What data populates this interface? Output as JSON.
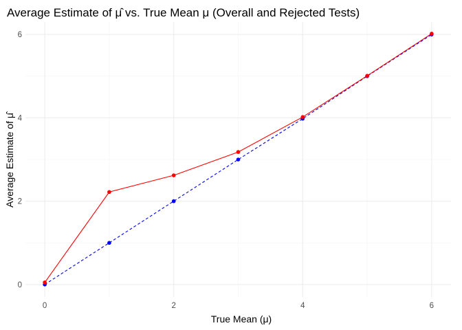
{
  "chart_data": {
    "type": "line",
    "title": "Average Estimate of μ̂ vs. True Mean μ (Overall and Rejected Tests)",
    "xlabel": "True Mean (μ)",
    "ylabel": "Average Estimate of μ̂",
    "xlim": [
      -0.3,
      6.3
    ],
    "ylim": [
      -0.3,
      6.3
    ],
    "x_ticks": [
      0,
      2,
      4,
      6
    ],
    "y_ticks": [
      0,
      2,
      4,
      6
    ],
    "grid": true,
    "legend": "none",
    "series": [
      {
        "color": "#0000ff",
        "line_style": "dashed",
        "x": [
          0,
          1,
          2,
          3,
          4,
          5,
          6
        ],
        "y": [
          0.0,
          1.0,
          2.0,
          3.0,
          3.98,
          5.0,
          6.0
        ]
      },
      {
        "color": "#ff0000",
        "line_style": "solid",
        "x": [
          0,
          1,
          2,
          3,
          4,
          5,
          6
        ],
        "y": [
          0.05,
          2.22,
          2.62,
          3.18,
          4.02,
          5.01,
          6.02
        ]
      }
    ]
  }
}
